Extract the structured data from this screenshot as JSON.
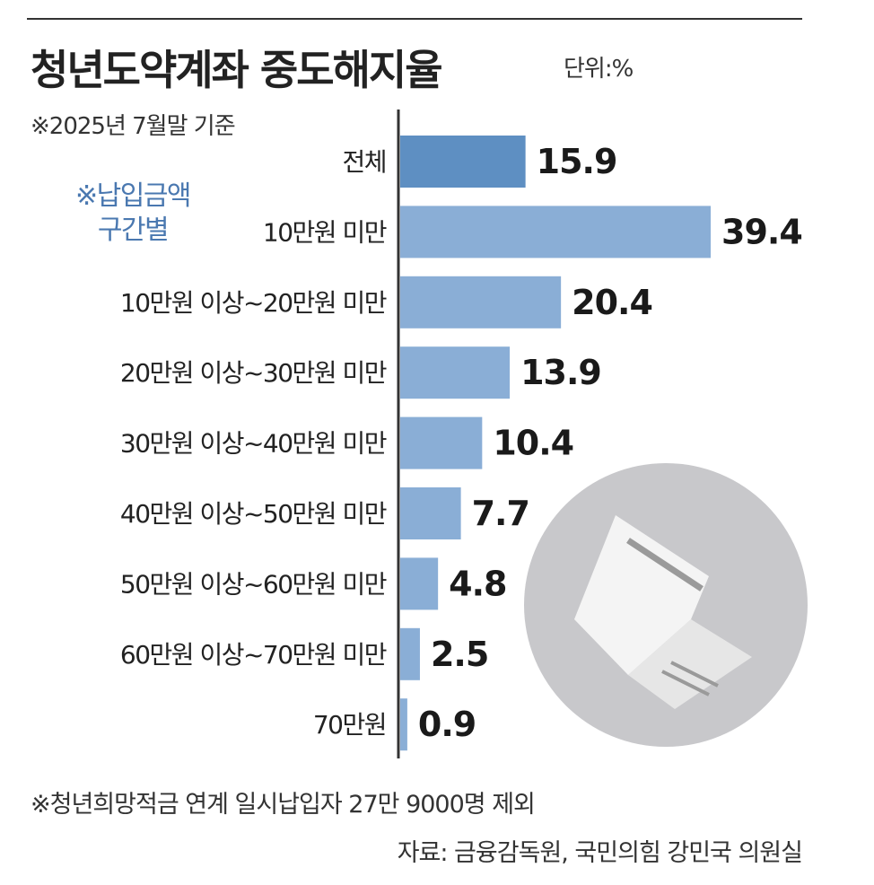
{
  "header": {
    "title": "청년도약계좌 중도해지율",
    "unit": "단위:%",
    "basis": "※2025년 7월말 기준"
  },
  "group_note": [
    "※납입금액",
    "구간별"
  ],
  "chart_data": {
    "type": "bar",
    "orientation": "horizontal",
    "title": "청년도약계좌 중도해지율",
    "unit": "%",
    "categories": [
      "전체",
      "10만원 미만",
      "10만원 이상~20만원 미만",
      "20만원 이상~30만원 미만",
      "30만원 이상~40만원 미만",
      "40만원 이상~50만원 미만",
      "50만원 이상~60만원 미만",
      "60만원 이상~70만원 미만",
      "70만원"
    ],
    "values": [
      15.9,
      39.4,
      20.4,
      13.9,
      10.4,
      7.7,
      4.8,
      2.5,
      0.9
    ],
    "value_labels": [
      "15.9",
      "39.4",
      "20.4",
      "13.9",
      "10.4",
      "7.7",
      "4.8",
      "2.5",
      "0.9"
    ],
    "xlim": [
      0,
      39.4
    ],
    "colors": {
      "total": "#5e8fc2",
      "segment": "#8aaed6"
    },
    "grid": false,
    "legend": "none"
  },
  "illustration": {
    "icon": "card-icon",
    "circle_color": "#c8c8cb"
  },
  "footer": {
    "note": "※청년희망적금 연계 일시납입자 27만 9000명 제외",
    "source": "자료: 금융감독원, 국민의힘 강민국 의원실"
  }
}
